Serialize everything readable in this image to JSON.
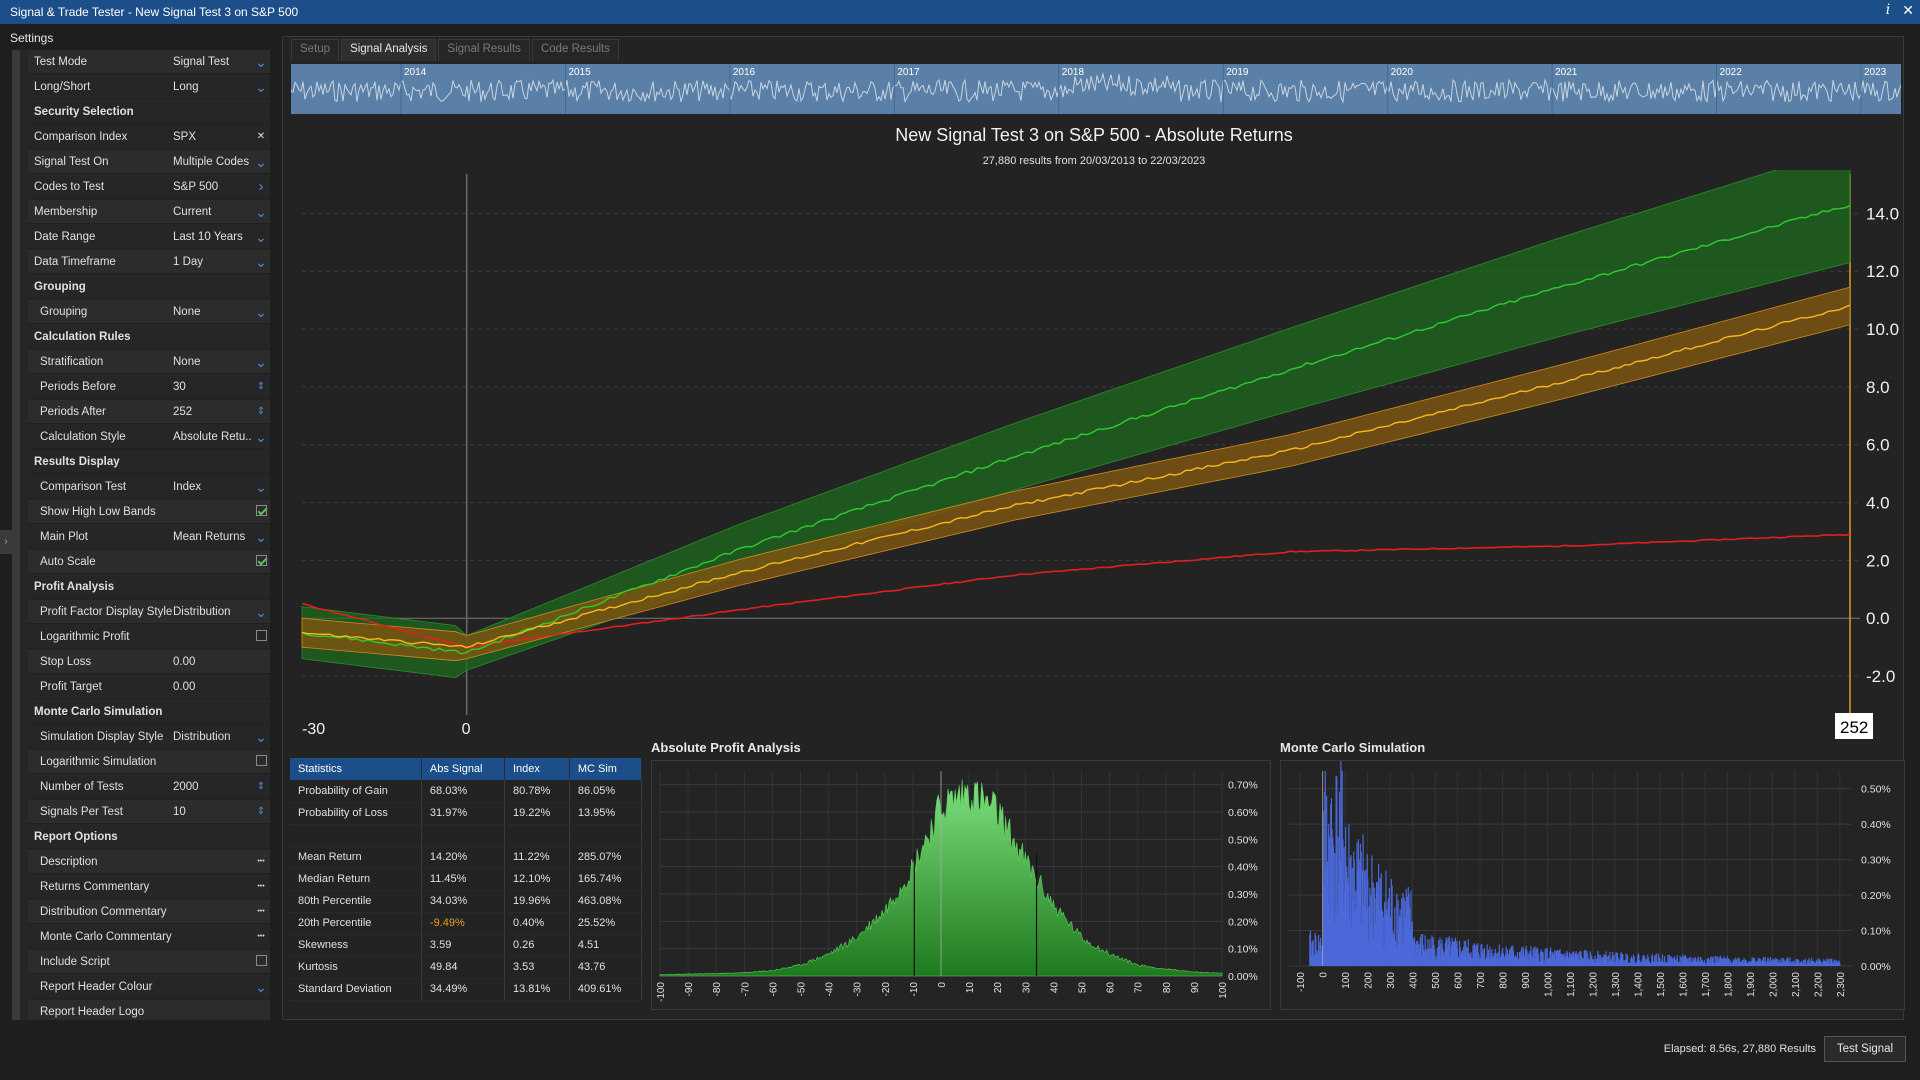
{
  "window": {
    "title": "Signal & Trade Tester - New Signal Test 3 on S&P 500"
  },
  "settings_label": "Settings",
  "sidebar": {
    "rows": [
      {
        "type": "field",
        "label": "Test Mode",
        "value": "Signal Test",
        "ctl": "dropdown"
      },
      {
        "type": "field",
        "label": "Long/Short",
        "value": "Long",
        "ctl": "dropdown"
      },
      {
        "type": "header",
        "label": "Security Selection"
      },
      {
        "type": "field",
        "label": "Comparison Index",
        "value": "SPX",
        "ctl": "clear"
      },
      {
        "type": "field",
        "label": "Signal Test On",
        "value": "Multiple Codes",
        "ctl": "dropdown"
      },
      {
        "type": "field",
        "label": "Codes to Test",
        "value": "S&P 500",
        "ctl": "arrow"
      },
      {
        "type": "field",
        "label": "Membership",
        "value": "Current",
        "ctl": "dropdown"
      },
      {
        "type": "field",
        "label": "Date Range",
        "value": "Last 10 Years",
        "ctl": "dropdown"
      },
      {
        "type": "field",
        "label": "Data Timeframe",
        "value": "1 Day",
        "ctl": "dropdown"
      },
      {
        "type": "header",
        "label": "Grouping"
      },
      {
        "type": "sub",
        "label": "Grouping",
        "value": "None",
        "ctl": "dropdown"
      },
      {
        "type": "header",
        "label": "Calculation Rules"
      },
      {
        "type": "sub",
        "label": "Stratification",
        "value": "None",
        "ctl": "dropdown"
      },
      {
        "type": "sub",
        "label": "Periods Before",
        "value": "30",
        "ctl": "spin"
      },
      {
        "type": "sub",
        "label": "Periods After",
        "value": "252",
        "ctl": "spin"
      },
      {
        "type": "sub",
        "label": "Calculation Style",
        "value": "Absolute Retu...",
        "ctl": "dropdown"
      },
      {
        "type": "header",
        "label": "Results Display"
      },
      {
        "type": "sub",
        "label": "Comparison Test",
        "value": "Index",
        "ctl": "dropdown"
      },
      {
        "type": "sub",
        "label": "Show High Low Bands",
        "value": "",
        "ctl": "check-on"
      },
      {
        "type": "sub",
        "label": "Main Plot",
        "value": "Mean Returns",
        "ctl": "dropdown"
      },
      {
        "type": "sub",
        "label": "Auto Scale",
        "value": "",
        "ctl": "check-on"
      },
      {
        "type": "header",
        "label": "Profit Analysis"
      },
      {
        "type": "sub",
        "label": "Profit Factor Display Style",
        "value": "Distribution",
        "ctl": "dropdown"
      },
      {
        "type": "sub",
        "label": "Logarithmic Profit",
        "value": "",
        "ctl": "check-off"
      },
      {
        "type": "sub",
        "label": "Stop Loss",
        "value": "0.00",
        "ctl": "none"
      },
      {
        "type": "sub",
        "label": "Profit Target",
        "value": "0.00",
        "ctl": "none"
      },
      {
        "type": "header",
        "label": "Monte Carlo Simulation"
      },
      {
        "type": "sub",
        "label": "Simulation Display Style",
        "value": "Distribution",
        "ctl": "dropdown"
      },
      {
        "type": "sub",
        "label": "Logarithmic Simulation",
        "value": "",
        "ctl": "check-off"
      },
      {
        "type": "sub",
        "label": "Number of Tests",
        "value": "2000",
        "ctl": "spin"
      },
      {
        "type": "sub",
        "label": "Signals Per Test",
        "value": "10",
        "ctl": "spin"
      },
      {
        "type": "header",
        "label": "Report Options"
      },
      {
        "type": "sub",
        "label": "Description",
        "value": "",
        "ctl": "more"
      },
      {
        "type": "sub",
        "label": "Returns Commentary",
        "value": "",
        "ctl": "more"
      },
      {
        "type": "sub",
        "label": "Distribution Commentary",
        "value": "",
        "ctl": "more"
      },
      {
        "type": "sub",
        "label": "Monte Carlo Commentary",
        "value": "",
        "ctl": "more"
      },
      {
        "type": "sub",
        "label": "Include Script",
        "value": "",
        "ctl": "check-off"
      },
      {
        "type": "sub",
        "label": "Report Header Colour",
        "value": "",
        "ctl": "dropdown"
      },
      {
        "type": "sub",
        "label": "Report Header Logo",
        "value": "",
        "ctl": "none"
      }
    ]
  },
  "tabs": [
    "Setup",
    "Signal Analysis",
    "Signal Results",
    "Code Results"
  ],
  "active_tab": 1,
  "timeline": {
    "years": [
      "2014",
      "2015",
      "2016",
      "2017",
      "2018",
      "2019",
      "2020",
      "2021",
      "2022",
      "2023"
    ]
  },
  "main_chart": {
    "title": "New Signal Test 3 on S&P 500 - Absolute Returns",
    "subtitle": "27,880 results from 20/03/2013 to 22/03/2023",
    "x_labels": {
      "start": "-30",
      "signal": "0",
      "end": "252"
    },
    "y_ticks": [
      "14.0",
      "12.0",
      "10.0",
      "8.0",
      "6.0",
      "4.0",
      "2.0",
      "0.0",
      "-2.0"
    ],
    "colors": {
      "signal": "#2ecc2e",
      "index": "#f0a020",
      "mc": "#e02020",
      "band_signal": "#1f6b1f",
      "band_index": "#7a5510"
    }
  },
  "chart_data": [
    {
      "type": "line",
      "title": "New Signal Test 3 on S&P 500 - Absolute Returns",
      "x": [
        -30,
        0,
        50,
        100,
        150,
        200,
        252
      ],
      "series": [
        {
          "values": [
            -0.5,
            -1.2,
            2.4,
            5.6,
            8.6,
            11.5,
            14.3
          ]
        },
        {
          "values": [
            -0.5,
            -1.0,
            1.6,
            3.9,
            5.8,
            8.2,
            10.8
          ]
        },
        {
          "values": [
            0.5,
            -1.0,
            0.3,
            1.5,
            2.3,
            2.5,
            2.9
          ]
        }
      ],
      "ylim": [
        -3.0,
        15.5
      ]
    },
    {
      "type": "area",
      "title": "Absolute Profit Analysis",
      "x": [
        -100,
        -90,
        -80,
        -70,
        -60,
        -50,
        -40,
        -30,
        -20,
        -10,
        0,
        10,
        20,
        30,
        40,
        50,
        60,
        70,
        80,
        90,
        100
      ],
      "values": [
        0.005,
        0.007,
        0.009,
        0.012,
        0.02,
        0.04,
        0.08,
        0.14,
        0.24,
        0.4,
        0.62,
        0.68,
        0.6,
        0.42,
        0.26,
        0.14,
        0.08,
        0.04,
        0.025,
        0.015,
        0.01
      ],
      "y_ticks": [
        "0.70%",
        "0.60%",
        "0.50%",
        "0.40%",
        "0.30%",
        "0.20%",
        "0.10%",
        "0.00%"
      ]
    },
    {
      "type": "bar",
      "title": "Monte Carlo Simulation",
      "x_ticks": [
        "-100",
        "0",
        "100",
        "200",
        "300",
        "400",
        "500",
        "600",
        "700",
        "800",
        "900",
        "1,000",
        "1,100",
        "1,200",
        "1,300",
        "1,400",
        "1,500",
        "1,600",
        "1,700",
        "1,800",
        "1,900",
        "2,000",
        "2,100",
        "2,200",
        "2,300"
      ],
      "y_ticks": [
        "0.50%",
        "0.40%",
        "0.30%",
        "0.20%",
        "0.10%",
        "0.00%"
      ]
    }
  ],
  "statistics": {
    "headers": [
      "Statistics",
      "Abs Signal",
      "Index",
      "MC Sim"
    ],
    "rows": [
      [
        "Probability of Gain",
        "68.03%",
        "80.78%",
        "86.05%"
      ],
      [
        "Probability of Loss",
        "31.97%",
        "19.22%",
        "13.95%"
      ],
      [
        "",
        "",
        "",
        ""
      ],
      [
        "Mean Return",
        "14.20%",
        "11.22%",
        "285.07%"
      ],
      [
        "Median Return",
        "11.45%",
        "12.10%",
        "165.74%"
      ],
      [
        "80th Percentile",
        "34.03%",
        "19.96%",
        "463.08%"
      ],
      [
        "20th Percentile",
        "-9.49%",
        "0.40%",
        "25.52%"
      ],
      [
        "Skewness",
        "3.59",
        "0.26",
        "4.51"
      ],
      [
        "Kurtosis",
        "49.84",
        "3.53",
        "43.76"
      ],
      [
        "Standard Deviation",
        "34.49%",
        "13.81%",
        "409.61%"
      ]
    ]
  },
  "profit_panel": {
    "title": "Absolute Profit Analysis"
  },
  "mc_panel": {
    "title": "Monte Carlo Simulation"
  },
  "footer": {
    "elapsed": "Elapsed: 8.56s, 27,880 Results",
    "button": "Test Signal"
  }
}
